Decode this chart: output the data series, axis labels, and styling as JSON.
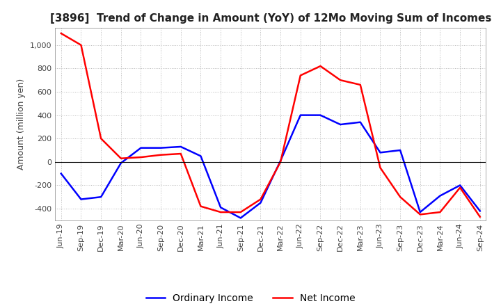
{
  "title": "[3896]  Trend of Change in Amount (YoY) of 12Mo Moving Sum of Incomes",
  "ylabel": "Amount (million yen)",
  "ylim": [
    -500,
    1150
  ],
  "yticks": [
    -400,
    -200,
    0,
    200,
    400,
    600,
    800,
    1000
  ],
  "background_color": "#ffffff",
  "grid_color": "#bbbbbb",
  "labels": [
    "Jun-19",
    "Sep-19",
    "Dec-19",
    "Mar-20",
    "Jun-20",
    "Sep-20",
    "Dec-20",
    "Mar-21",
    "Jun-21",
    "Sep-21",
    "Dec-21",
    "Mar-22",
    "Jun-22",
    "Sep-22",
    "Dec-22",
    "Mar-23",
    "Jun-23",
    "Sep-23",
    "Dec-23",
    "Mar-24",
    "Jun-24",
    "Sep-24"
  ],
  "ordinary_income": [
    -100,
    -320,
    -300,
    -10,
    120,
    120,
    130,
    50,
    -390,
    -480,
    -350,
    10,
    400,
    400,
    320,
    340,
    80,
    100,
    -430,
    -290,
    -200,
    -420
  ],
  "net_income": [
    1100,
    1000,
    200,
    30,
    40,
    60,
    70,
    -380,
    -430,
    -430,
    -320,
    0,
    740,
    820,
    700,
    660,
    -50,
    -300,
    -450,
    -430,
    -220,
    -470
  ],
  "ordinary_color": "#0000ff",
  "net_color": "#ff0000",
  "title_fontsize": 11,
  "axis_fontsize": 9,
  "tick_fontsize": 8,
  "legend_fontsize": 10
}
